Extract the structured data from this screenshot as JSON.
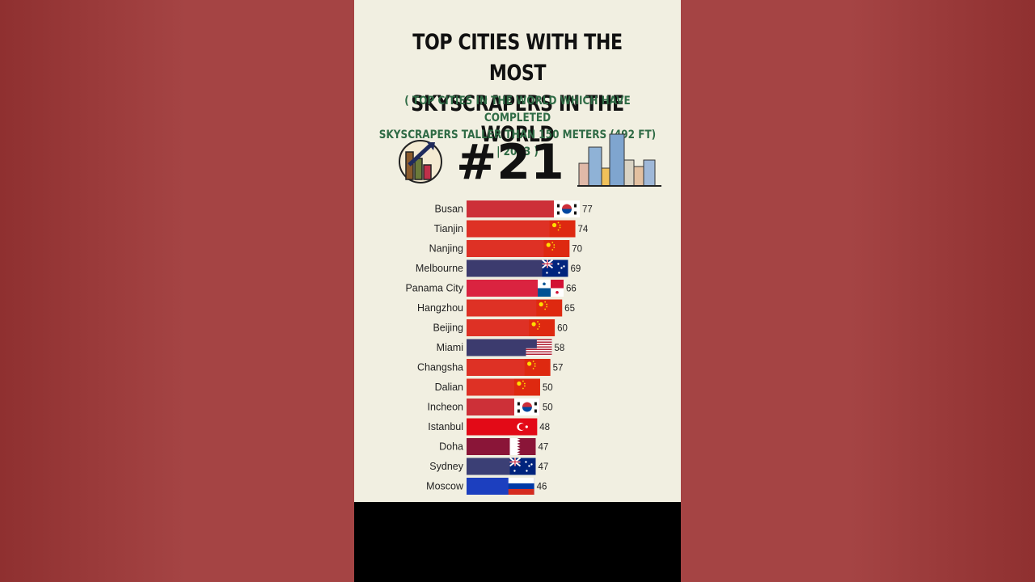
{
  "header": {
    "title_line1": "TOP CITIES WITH THE MOST",
    "title_line2": "SKYSCRAPERS IN THE WORLD",
    "subtitle_line1": "( TOP CITIES IN THE WORLD WHICH HAVE COMPLETED",
    "subtitle_line2": "SKYSCRAPERS TALLER THAN 150 METERS (492 FT) | 2023 )",
    "rank": "#21"
  },
  "icons": {
    "left": "bar-chart-arrow-icon",
    "right": "city-skyline-icon"
  },
  "colors": {
    "background_side": "#a54444",
    "panel": "#f1efe1",
    "subtitle": "#2f6b45",
    "footer": "#000000"
  },
  "chart_data": {
    "type": "bar",
    "orientation": "horizontal",
    "categories": [
      "Busan",
      "Tianjin",
      "Nanjing",
      "Melbourne",
      "Panama City",
      "Hangzhou",
      "Beijing",
      "Miami",
      "Changsha",
      "Dalian",
      "Incheon",
      "Istanbul",
      "Doha",
      "Sydney",
      "Moscow"
    ],
    "values": [
      77,
      74,
      70,
      69,
      66,
      65,
      60,
      58,
      57,
      50,
      50,
      48,
      47,
      47,
      46
    ],
    "flags": [
      "south-korea",
      "china",
      "china",
      "australia",
      "panama",
      "china",
      "china",
      "usa",
      "china",
      "china",
      "south-korea",
      "turkey",
      "qatar",
      "australia",
      "russia"
    ],
    "bar_colors": [
      "#cd3038",
      "#de3125",
      "#de3125",
      "#3c3b6e",
      "#da2340",
      "#de3125",
      "#de3125",
      "#3c3b6e",
      "#de3125",
      "#de3125",
      "#cd3038",
      "#e30a17",
      "#8a1538",
      "#3b3f75",
      "#1c3fbf"
    ],
    "title": "TOP CITIES WITH THE MOST SKYSCRAPERS IN THE WORLD",
    "xlim": [
      0,
      77
    ]
  }
}
